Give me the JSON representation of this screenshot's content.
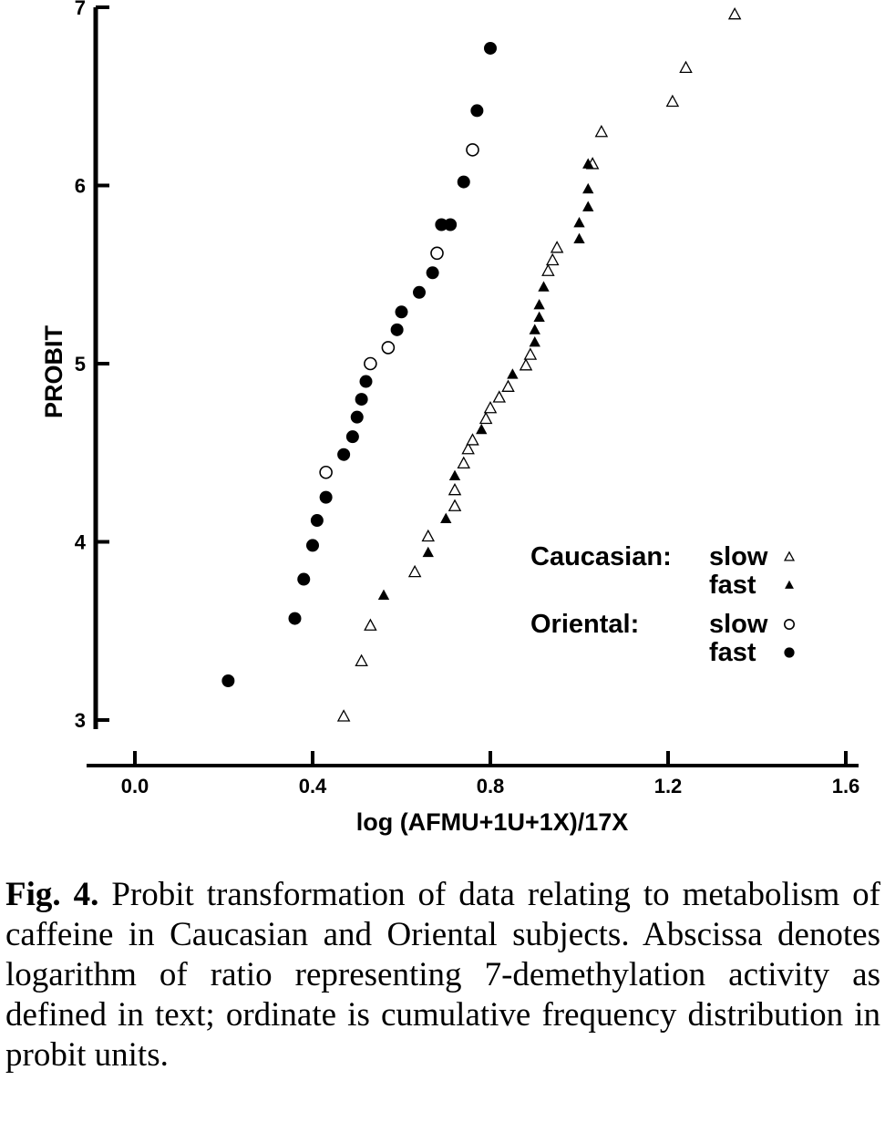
{
  "chart_data": {
    "type": "scatter",
    "xlabel": "log (AFMU+1U+1X)/17X",
    "ylabel": "PROBIT",
    "xlim": [
      -0.1,
      1.6
    ],
    "ylim": [
      3,
      7
    ],
    "x_ticks": [
      0.0,
      0.4,
      0.8,
      1.2,
      1.6
    ],
    "x_tick_labels": [
      "0.0",
      "0.4",
      "0.8",
      "1.2",
      "1.6"
    ],
    "y_ticks": [
      3,
      4,
      5,
      6,
      7
    ],
    "y_tick_labels": [
      "3",
      "4",
      "5",
      "6",
      "7"
    ],
    "grid": false,
    "legend_position": "right",
    "legend_groups": [
      {
        "label": "Caucasian:",
        "entries": [
          {
            "label": "slow",
            "series": "caucasian_slow"
          },
          {
            "label": "fast",
            "series": "caucasian_fast"
          }
        ]
      },
      {
        "label": "Oriental:",
        "entries": [
          {
            "label": "slow",
            "series": "oriental_slow"
          },
          {
            "label": "fast",
            "series": "oriental_fast"
          }
        ]
      }
    ],
    "series": [
      {
        "id": "caucasian_slow",
        "marker": "open-triangle",
        "points": [
          [
            0.47,
            3.02
          ],
          [
            0.51,
            3.33
          ],
          [
            0.53,
            3.53
          ],
          [
            0.63,
            3.83
          ],
          [
            0.66,
            4.03
          ],
          [
            0.72,
            4.2
          ],
          [
            0.72,
            4.29
          ],
          [
            0.74,
            4.44
          ],
          [
            0.75,
            4.52
          ],
          [
            0.76,
            4.57
          ],
          [
            0.79,
            4.69
          ],
          [
            0.8,
            4.75
          ],
          [
            0.82,
            4.81
          ],
          [
            0.84,
            4.87
          ],
          [
            0.88,
            4.99
          ],
          [
            0.89,
            5.05
          ],
          [
            0.93,
            5.52
          ],
          [
            0.94,
            5.58
          ],
          [
            0.95,
            5.65
          ],
          [
            1.03,
            6.12
          ],
          [
            1.05,
            6.3
          ],
          [
            1.21,
            6.47
          ],
          [
            1.24,
            6.66
          ],
          [
            1.35,
            6.96
          ]
        ]
      },
      {
        "id": "caucasian_fast",
        "marker": "filled-triangle",
        "points": [
          [
            0.56,
            3.7
          ],
          [
            0.66,
            3.94
          ],
          [
            0.7,
            4.13
          ],
          [
            0.72,
            4.37
          ],
          [
            0.78,
            4.63
          ],
          [
            0.85,
            4.94
          ],
          [
            0.9,
            5.12
          ],
          [
            0.9,
            5.19
          ],
          [
            0.91,
            5.26
          ],
          [
            0.91,
            5.33
          ],
          [
            0.92,
            5.43
          ],
          [
            1.0,
            5.7
          ],
          [
            1.0,
            5.79
          ],
          [
            1.02,
            5.88
          ],
          [
            1.02,
            5.98
          ],
          [
            1.02,
            6.12
          ]
        ]
      },
      {
        "id": "oriental_slow",
        "marker": "open-circle",
        "points": [
          [
            0.43,
            4.39
          ],
          [
            0.53,
            5.0
          ],
          [
            0.57,
            5.09
          ],
          [
            0.68,
            5.62
          ],
          [
            0.76,
            6.2
          ]
        ]
      },
      {
        "id": "oriental_fast",
        "marker": "filled-circle",
        "points": [
          [
            0.21,
            3.22
          ],
          [
            0.36,
            3.57
          ],
          [
            0.38,
            3.79
          ],
          [
            0.4,
            3.98
          ],
          [
            0.41,
            4.12
          ],
          [
            0.43,
            4.25
          ],
          [
            0.47,
            4.49
          ],
          [
            0.49,
            4.59
          ],
          [
            0.5,
            4.7
          ],
          [
            0.51,
            4.8
          ],
          [
            0.52,
            4.9
          ],
          [
            0.59,
            5.19
          ],
          [
            0.6,
            5.29
          ],
          [
            0.64,
            5.4
          ],
          [
            0.67,
            5.51
          ],
          [
            0.69,
            5.78
          ],
          [
            0.71,
            5.78
          ],
          [
            0.74,
            6.02
          ],
          [
            0.77,
            6.42
          ],
          [
            0.8,
            6.77
          ]
        ]
      }
    ]
  },
  "caption": {
    "label": "Fig. 4.",
    "text": "Probit transformation of data relating to metabolism of caffeine in Caucasian and Oriental subjects. Abscissa denotes logarithm of ratio representing 7-demethylation activity as defined in text; ordinate is cumulative frequency distribution in probit units."
  }
}
